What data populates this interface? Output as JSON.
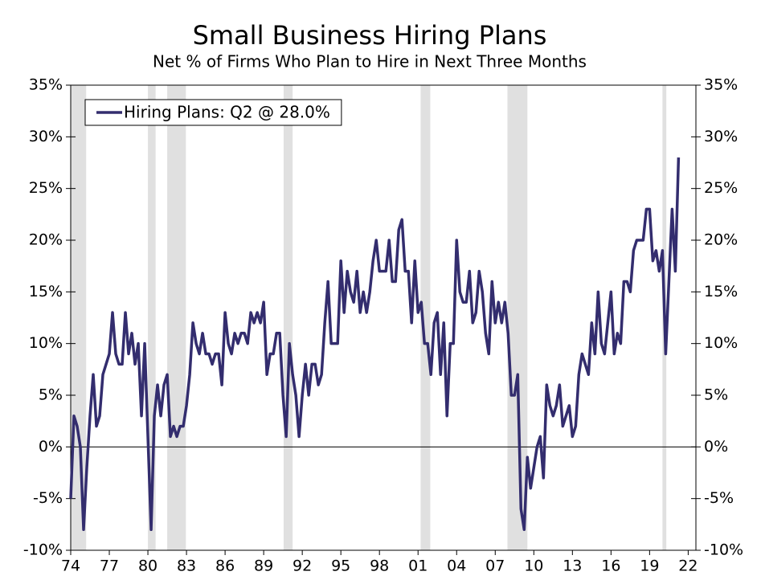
{
  "chart_data": {
    "type": "line",
    "title": "Small Business Hiring Plans",
    "subtitle": "Net % of Firms Who Plan to Hire in Next Three Months",
    "x": [
      1974,
      1974.25,
      1974.5,
      1974.75,
      1975,
      1975.25,
      1975.5,
      1975.75,
      1976,
      1976.25,
      1976.5,
      1976.75,
      1977,
      1977.25,
      1977.5,
      1977.75,
      1978,
      1978.25,
      1978.5,
      1978.75,
      1979,
      1979.25,
      1979.5,
      1979.75,
      1980,
      1980.25,
      1980.5,
      1980.75,
      1981,
      1981.25,
      1981.5,
      1981.75,
      1982,
      1982.25,
      1982.5,
      1982.75,
      1983,
      1983.25,
      1983.5,
      1983.75,
      1984,
      1984.25,
      1984.5,
      1984.75,
      1985,
      1985.25,
      1985.5,
      1985.75,
      1986,
      1986.25,
      1986.5,
      1986.75,
      1987,
      1987.25,
      1987.5,
      1987.75,
      1988,
      1988.25,
      1988.5,
      1988.75,
      1989,
      1989.25,
      1989.5,
      1989.75,
      1990,
      1990.25,
      1990.5,
      1990.75,
      1991,
      1991.25,
      1991.5,
      1991.75,
      1992,
      1992.25,
      1992.5,
      1992.75,
      1993,
      1993.25,
      1993.5,
      1993.75,
      1994,
      1994.25,
      1994.5,
      1994.75,
      1995,
      1995.25,
      1995.5,
      1995.75,
      1996,
      1996.25,
      1996.5,
      1996.75,
      1997,
      1997.25,
      1997.5,
      1997.75,
      1998,
      1998.25,
      1998.5,
      1998.75,
      1999,
      1999.25,
      1999.5,
      1999.75,
      2000,
      2000.25,
      2000.5,
      2000.75,
      2001,
      2001.25,
      2001.5,
      2001.75,
      2002,
      2002.25,
      2002.5,
      2002.75,
      2003,
      2003.25,
      2003.5,
      2003.75,
      2004,
      2004.25,
      2004.5,
      2004.75,
      2005,
      2005.25,
      2005.5,
      2005.75,
      2006,
      2006.25,
      2006.5,
      2006.75,
      2007,
      2007.25,
      2007.5,
      2007.75,
      2008,
      2008.25,
      2008.5,
      2008.75,
      2009,
      2009.25,
      2009.5,
      2009.75,
      2010,
      2010.25,
      2010.5,
      2010.75,
      2011,
      2011.25,
      2011.5,
      2011.75,
      2012,
      2012.25,
      2012.5,
      2012.75,
      2013,
      2013.25,
      2013.5,
      2013.75,
      2014,
      2014.25,
      2014.5,
      2014.75,
      2015,
      2015.25,
      2015.5,
      2015.75,
      2016,
      2016.25,
      2016.5,
      2016.75,
      2017,
      2017.25,
      2017.5,
      2017.75,
      2018,
      2018.25,
      2018.5,
      2018.75,
      2019,
      2019.25,
      2019.5,
      2019.75,
      2020,
      2020.25,
      2020.5,
      2020.75,
      2021,
      2021.25
    ],
    "series": [
      {
        "name": "Hiring Plans: Q2 @ 28.0%",
        "color": "#332d6e",
        "values": [
          -5,
          3,
          2,
          0,
          -8,
          -2,
          3,
          7,
          2,
          3,
          7,
          8,
          9,
          13,
          9,
          8,
          8,
          13,
          9,
          11,
          8,
          10,
          3,
          10,
          1,
          -8,
          3,
          6,
          3,
          6,
          7,
          1,
          2,
          1,
          2,
          2,
          4,
          7,
          12,
          10,
          9,
          11,
          9,
          9,
          8,
          9,
          9,
          6,
          13,
          10,
          9,
          11,
          10,
          11,
          11,
          10,
          13,
          12,
          13,
          12,
          14,
          7,
          9,
          9,
          11,
          11,
          5,
          1,
          10,
          7,
          5,
          1,
          5,
          8,
          5,
          8,
          8,
          6,
          7,
          12,
          16,
          10,
          10,
          10,
          18,
          13,
          17,
          15,
          14,
          17,
          13,
          15,
          13,
          15,
          18,
          20,
          17,
          17,
          17,
          20,
          16,
          16,
          21,
          22,
          17,
          17,
          12,
          18,
          13,
          14,
          10,
          10,
          7,
          12,
          13,
          7,
          12,
          3,
          10,
          10,
          20,
          15,
          14,
          14,
          17,
          12,
          13,
          17,
          15,
          11,
          9,
          16,
          12,
          14,
          12,
          14,
          11,
          5,
          5,
          7,
          -6,
          -8,
          -1,
          -4,
          -2,
          0,
          1,
          -3,
          6,
          4,
          3,
          4,
          6,
          2,
          3,
          4,
          1,
          2,
          7,
          9,
          8,
          7,
          12,
          9,
          15,
          10,
          9,
          12,
          15,
          9,
          11,
          10,
          16,
          16,
          15,
          19,
          20,
          20,
          20,
          23,
          23,
          18,
          19,
          17,
          19,
          9,
          16,
          23,
          17,
          28
        ]
      }
    ],
    "recessions": [
      [
        1973.9,
        1975.2
      ],
      [
        1980,
        1980.6
      ],
      [
        1981.5,
        1982.95
      ],
      [
        1990.55,
        1991.25
      ],
      [
        2001.2,
        2001.95
      ],
      [
        2007.95,
        2009.5
      ],
      [
        2020,
        2020.3
      ]
    ],
    "xlim": [
      1974,
      2022.6
    ],
    "xticks": [
      {
        "value": 1974,
        "label": "74"
      },
      {
        "value": 1977,
        "label": "77"
      },
      {
        "value": 1980,
        "label": "80"
      },
      {
        "value": 1983,
        "label": "83"
      },
      {
        "value": 1986,
        "label": "86"
      },
      {
        "value": 1989,
        "label": "89"
      },
      {
        "value": 1992,
        "label": "92"
      },
      {
        "value": 1995,
        "label": "95"
      },
      {
        "value": 1998,
        "label": "98"
      },
      {
        "value": 2001,
        "label": "01"
      },
      {
        "value": 2004,
        "label": "04"
      },
      {
        "value": 2007,
        "label": "07"
      },
      {
        "value": 2010,
        "label": "10"
      },
      {
        "value": 2013,
        "label": "13"
      },
      {
        "value": 2016,
        "label": "16"
      },
      {
        "value": 2019,
        "label": "19"
      },
      {
        "value": 2022,
        "label": "22"
      }
    ],
    "ylim": [
      -10,
      35
    ],
    "yticks": [
      {
        "value": -10,
        "label": "-10%"
      },
      {
        "value": -5,
        "label": "-5%"
      },
      {
        "value": 0,
        "label": "0%"
      },
      {
        "value": 5,
        "label": "5%"
      },
      {
        "value": 10,
        "label": "10%"
      },
      {
        "value": 15,
        "label": "15%"
      },
      {
        "value": 20,
        "label": "20%"
      },
      {
        "value": 25,
        "label": "25%"
      },
      {
        "value": 30,
        "label": "30%"
      },
      {
        "value": 35,
        "label": "35%"
      }
    ],
    "y2lim": [
      -10,
      35
    ],
    "y2ticks": [
      {
        "value": -10,
        "label": "-10%"
      },
      {
        "value": -5,
        "label": "-5%"
      },
      {
        "value": 0,
        "label": "0%"
      },
      {
        "value": 5,
        "label": "5%"
      },
      {
        "value": 10,
        "label": "10%"
      },
      {
        "value": 15,
        "label": "15%"
      },
      {
        "value": 20,
        "label": "20%"
      },
      {
        "value": 25,
        "label": "25%"
      },
      {
        "value": 30,
        "label": "30%"
      },
      {
        "value": 35,
        "label": "35%"
      }
    ],
    "legend": "upper left"
  }
}
